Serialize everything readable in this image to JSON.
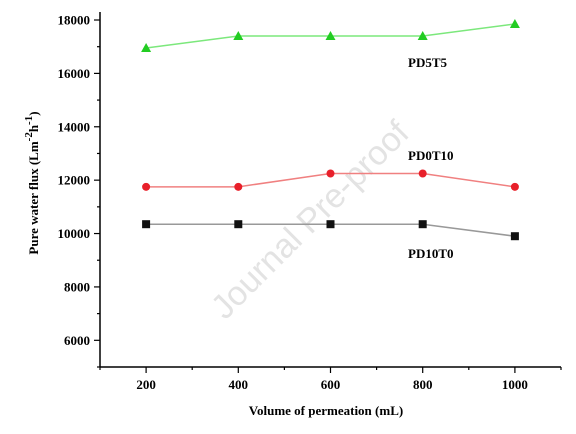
{
  "chart_data": {
    "type": "line",
    "title": "",
    "xlabel": "Volume of permeation (mL)",
    "ylabel": "Pure water flux (Lm-2h-1)",
    "ylabel_parts": {
      "main": "Pure water flux (Lm",
      "sup1": "-2",
      "mid": "h",
      "sup2": "-1",
      "end": ")"
    },
    "x": [
      200,
      400,
      600,
      800,
      1000
    ],
    "xlim": [
      100,
      1100
    ],
    "ylim": [
      5000,
      18300
    ],
    "xticks": [
      200,
      400,
      600,
      800,
      1000
    ],
    "yticks": [
      6000,
      8000,
      10000,
      12000,
      14000,
      16000,
      18000
    ],
    "grid": false,
    "series": [
      {
        "name": "PD5T5",
        "color": "#7ce87c",
        "marker_color": "#22cc22",
        "marker": "triangle",
        "values": [
          16950,
          17400,
          17400,
          17400,
          17850
        ]
      },
      {
        "name": "PD0T10",
        "color": "#f08080",
        "marker_color": "#e8202a",
        "marker": "circle",
        "values": [
          11750,
          11750,
          12250,
          12250,
          11750
        ]
      },
      {
        "name": "PD10T0",
        "color": "#999999",
        "marker_color": "#111111",
        "marker": "square",
        "values": [
          10350,
          10350,
          10350,
          10350,
          9900
        ]
      }
    ]
  },
  "watermark": "Journal Pre-proof"
}
